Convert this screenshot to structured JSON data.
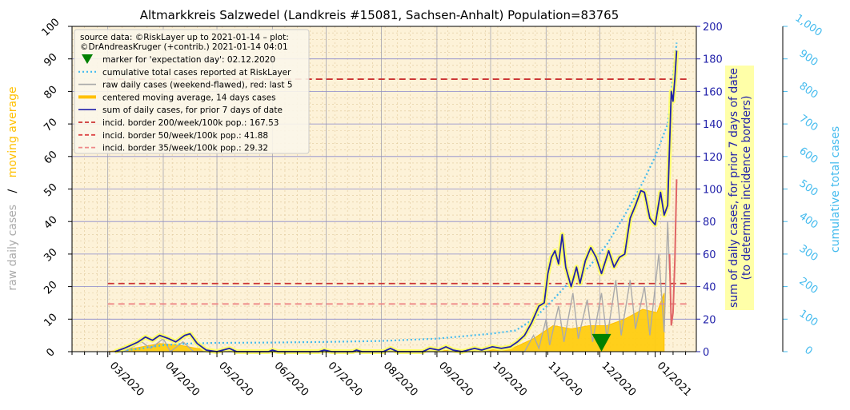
{
  "chart_data": {
    "type": "line",
    "title": "Altmarkkreis Salzwedel (Landkreis #15081, Sachsen-Anhalt) Population=83765",
    "left_axis": {
      "label_parts": [
        {
          "text": "raw daily cases",
          "color": "#aaaaaa"
        },
        {
          "text": "/",
          "color": "#000000"
        },
        {
          "text": "moving average",
          "color": "#ffc000"
        }
      ],
      "ylim": [
        0,
        100
      ],
      "ticks": [
        "0",
        "10",
        "20",
        "30",
        "40",
        "50",
        "60",
        "70",
        "80",
        "90",
        "100"
      ]
    },
    "right_axis": {
      "label_line1": "sum of daily cases, for prior 7 days of date",
      "label_line2": "(to determine incidence borders)",
      "color": "#2222aa",
      "ylim": [
        0,
        200
      ],
      "ticks": [
        "0",
        "20",
        "40",
        "60",
        "80",
        "100",
        "120",
        "140",
        "160",
        "180",
        "200"
      ]
    },
    "far_right_axis": {
      "label": "cumulative total cases",
      "color": "#44bbee",
      "ylim": [
        0,
        1000
      ],
      "ticks": [
        "0",
        "100",
        "200",
        "300",
        "400",
        "500",
        "600",
        "700",
        "800",
        "900",
        "1,000"
      ]
    },
    "x_axis": {
      "range": [
        "2020-02-10",
        "2021-01-24"
      ],
      "tick_labels": [
        {
          "date": "2020-03-01",
          "label": "03/2020"
        },
        {
          "date": "2020-04-01",
          "label": "04/2020"
        },
        {
          "date": "2020-05-01",
          "label": "05/2020"
        },
        {
          "date": "2020-06-01",
          "label": "06/2020"
        },
        {
          "date": "2020-07-01",
          "label": "07/2020"
        },
        {
          "date": "2020-08-01",
          "label": "08/2020"
        },
        {
          "date": "2020-09-01",
          "label": "09/2020"
        },
        {
          "date": "2020-10-01",
          "label": "10/2020"
        },
        {
          "date": "2020-11-01",
          "label": "11/2020"
        },
        {
          "date": "2020-12-01",
          "label": "12/2020"
        },
        {
          "date": "2021-01-01",
          "label": "01/2021"
        }
      ]
    },
    "grid": true,
    "legend": {
      "position": "top-left",
      "source_line1": "source data: ©RiskLayer up to 2021-01-14 – plot:",
      "source_line2": "©DrAndreasKruger (+contrib.) 2021-01-14 04:01",
      "entries": [
        {
          "label": "marker for 'expectation day': 02.12.2020",
          "kind": "marker",
          "color": "#008000"
        },
        {
          "label": "cumulative total cases reported at RiskLayer",
          "kind": "dotted",
          "color": "#44bbee"
        },
        {
          "label": "raw daily cases (weekend-flawed), red: last 5",
          "kind": "line",
          "color": "#aaaaaa"
        },
        {
          "label": "centered moving average, 14 days cases",
          "kind": "thick",
          "color": "#ffc000"
        },
        {
          "label": "sum of daily cases, for prior 7 days of date",
          "kind": "line",
          "color": "#2222aa"
        },
        {
          "label": "incid. border 200/week/100k pop.: 167.53",
          "kind": "dashed",
          "color": "#cc3333"
        },
        {
          "label": "incid. border 50/week/100k pop.: 41.88",
          "kind": "dashed",
          "color": "#dd4444"
        },
        {
          "label": "incid. border 35/week/100k pop.: 29.32",
          "kind": "dashed",
          "color": "#ee8888"
        }
      ]
    },
    "incidence_borders_right_axis": [
      {
        "value": 167.53,
        "color": "#cc3333",
        "start": "2020-03-01"
      },
      {
        "value": 41.88,
        "color": "#cc3333",
        "start": "2020-03-01"
      },
      {
        "value": 29.32,
        "color": "#ee8888",
        "start": "2020-03-01"
      }
    ],
    "expectation_day": {
      "date": "2020-12-02",
      "value_left": 2.5
    },
    "series": [
      {
        "name": "sum of daily cases, for prior 7 days of date",
        "axis": "right",
        "color": "#2222aa",
        "points": [
          [
            "2020-03-05",
            0
          ],
          [
            "2020-03-10",
            2
          ],
          [
            "2020-03-14",
            4
          ],
          [
            "2020-03-18",
            6
          ],
          [
            "2020-03-22",
            9
          ],
          [
            "2020-03-26",
            7
          ],
          [
            "2020-03-30",
            10
          ],
          [
            "2020-04-04",
            8
          ],
          [
            "2020-04-08",
            6
          ],
          [
            "2020-04-13",
            10
          ],
          [
            "2020-04-16",
            11
          ],
          [
            "2020-04-20",
            5
          ],
          [
            "2020-04-25",
            1
          ],
          [
            "2020-05-01",
            0
          ],
          [
            "2020-05-08",
            2
          ],
          [
            "2020-05-12",
            0
          ],
          [
            "2020-05-30",
            0
          ],
          [
            "2020-06-01",
            1
          ],
          [
            "2020-06-04",
            0
          ],
          [
            "2020-06-27",
            0
          ],
          [
            "2020-06-30",
            1
          ],
          [
            "2020-07-04",
            0
          ],
          [
            "2020-07-16",
            0
          ],
          [
            "2020-07-18",
            1
          ],
          [
            "2020-07-21",
            0
          ],
          [
            "2020-08-02",
            0
          ],
          [
            "2020-08-06",
            2
          ],
          [
            "2020-08-10",
            0
          ],
          [
            "2020-08-24",
            0
          ],
          [
            "2020-08-28",
            2
          ],
          [
            "2020-09-02",
            1
          ],
          [
            "2020-09-06",
            3
          ],
          [
            "2020-09-10",
            1
          ],
          [
            "2020-09-15",
            0
          ],
          [
            "2020-09-22",
            2
          ],
          [
            "2020-09-26",
            1
          ],
          [
            "2020-10-02",
            3
          ],
          [
            "2020-10-07",
            2
          ],
          [
            "2020-10-12",
            3
          ],
          [
            "2020-10-16",
            6
          ],
          [
            "2020-10-20",
            10
          ],
          [
            "2020-10-24",
            18
          ],
          [
            "2020-10-28",
            28
          ],
          [
            "2020-10-31",
            30
          ],
          [
            "2020-11-02",
            48
          ],
          [
            "2020-11-04",
            58
          ],
          [
            "2020-11-06",
            62
          ],
          [
            "2020-11-08",
            54
          ],
          [
            "2020-11-10",
            72
          ],
          [
            "2020-11-12",
            52
          ],
          [
            "2020-11-15",
            40
          ],
          [
            "2020-11-18",
            52
          ],
          [
            "2020-11-20",
            42
          ],
          [
            "2020-11-23",
            56
          ],
          [
            "2020-11-26",
            64
          ],
          [
            "2020-11-29",
            58
          ],
          [
            "2020-12-02",
            48
          ],
          [
            "2020-12-04",
            55
          ],
          [
            "2020-12-06",
            62
          ],
          [
            "2020-12-09",
            52
          ],
          [
            "2020-12-12",
            58
          ],
          [
            "2020-12-15",
            60
          ],
          [
            "2020-12-18",
            82
          ],
          [
            "2020-12-21",
            90
          ],
          [
            "2020-12-24",
            99
          ],
          [
            "2020-12-26",
            98
          ],
          [
            "2020-12-29",
            82
          ],
          [
            "2021-01-01",
            78
          ],
          [
            "2021-01-04",
            98
          ],
          [
            "2021-01-06",
            84
          ],
          [
            "2021-01-08",
            90
          ],
          [
            "2021-01-10",
            160
          ],
          [
            "2021-01-11",
            154
          ],
          [
            "2021-01-12",
            168
          ],
          [
            "2021-01-13",
            185
          ]
        ]
      },
      {
        "name": "centered moving average, 14 days cases",
        "axis": "left",
        "color": "#ffc000",
        "points": [
          [
            "2020-03-01",
            0
          ],
          [
            "2020-03-15",
            1
          ],
          [
            "2020-03-30",
            2.5
          ],
          [
            "2020-04-10",
            2
          ],
          [
            "2020-04-20",
            1
          ],
          [
            "2020-05-01",
            0.2
          ],
          [
            "2020-06-01",
            0.1
          ],
          [
            "2020-07-01",
            0.1
          ],
          [
            "2020-08-01",
            0.2
          ],
          [
            "2020-09-01",
            0.3
          ],
          [
            "2020-10-01",
            0.5
          ],
          [
            "2020-10-15",
            1.5
          ],
          [
            "2020-10-25",
            4
          ],
          [
            "2020-11-05",
            8
          ],
          [
            "2020-11-15",
            7
          ],
          [
            "2020-11-25",
            8
          ],
          [
            "2020-12-05",
            8
          ],
          [
            "2020-12-15",
            10
          ],
          [
            "2020-12-25",
            13
          ],
          [
            "2021-01-02",
            12
          ],
          [
            "2021-01-06",
            18
          ]
        ]
      },
      {
        "name": "raw daily cases (weekend-flawed), red: last 5",
        "axis": "left",
        "color": "#aaaaaa",
        "points": [
          [
            "2020-03-10",
            0
          ],
          [
            "2020-03-20",
            3
          ],
          [
            "2020-03-25",
            1
          ],
          [
            "2020-04-01",
            4
          ],
          [
            "2020-04-05",
            0
          ],
          [
            "2020-04-12",
            3
          ],
          [
            "2020-04-18",
            0
          ],
          [
            "2020-05-01",
            0
          ],
          [
            "2020-10-20",
            0
          ],
          [
            "2020-10-25",
            5
          ],
          [
            "2020-10-28",
            1
          ],
          [
            "2020-11-01",
            10
          ],
          [
            "2020-11-03",
            2
          ],
          [
            "2020-11-08",
            14
          ],
          [
            "2020-11-11",
            3
          ],
          [
            "2020-11-16",
            18
          ],
          [
            "2020-11-19",
            4
          ],
          [
            "2020-11-24",
            16
          ],
          [
            "2020-11-27",
            3
          ],
          [
            "2020-12-02",
            18
          ],
          [
            "2020-12-05",
            4
          ],
          [
            "2020-12-10",
            22
          ],
          [
            "2020-12-13",
            5
          ],
          [
            "2020-12-18",
            22
          ],
          [
            "2020-12-21",
            7
          ],
          [
            "2020-12-26",
            20
          ],
          [
            "2020-12-29",
            5
          ],
          [
            "2021-01-03",
            30
          ],
          [
            "2021-01-06",
            6
          ],
          [
            "2021-01-08",
            40
          ],
          [
            "2021-01-09",
            25
          ]
        ]
      },
      {
        "name": "raw daily cases, last 5",
        "axis": "left",
        "color": "#e06666",
        "points": [
          [
            "2021-01-09",
            30
          ],
          [
            "2021-01-10",
            8
          ],
          [
            "2021-01-11",
            12
          ],
          [
            "2021-01-12",
            28
          ],
          [
            "2021-01-13",
            53
          ]
        ]
      },
      {
        "name": "cumulative total cases reported at RiskLayer",
        "axis": "far_right",
        "color": "#44bbee",
        "points": [
          [
            "2020-03-05",
            0
          ],
          [
            "2020-03-20",
            10
          ],
          [
            "2020-04-01",
            20
          ],
          [
            "2020-04-15",
            25
          ],
          [
            "2020-05-01",
            27
          ],
          [
            "2020-06-01",
            28
          ],
          [
            "2020-07-01",
            30
          ],
          [
            "2020-08-01",
            33
          ],
          [
            "2020-09-01",
            40
          ],
          [
            "2020-10-01",
            55
          ],
          [
            "2020-10-15",
            65
          ],
          [
            "2020-10-25",
            100
          ],
          [
            "2020-11-05",
            160
          ],
          [
            "2020-11-15",
            220
          ],
          [
            "2020-11-25",
            260
          ],
          [
            "2020-12-05",
            330
          ],
          [
            "2020-12-15",
            420
          ],
          [
            "2020-12-25",
            520
          ],
          [
            "2021-01-01",
            600
          ],
          [
            "2021-01-08",
            700
          ],
          [
            "2021-01-13",
            950
          ]
        ]
      }
    ]
  }
}
